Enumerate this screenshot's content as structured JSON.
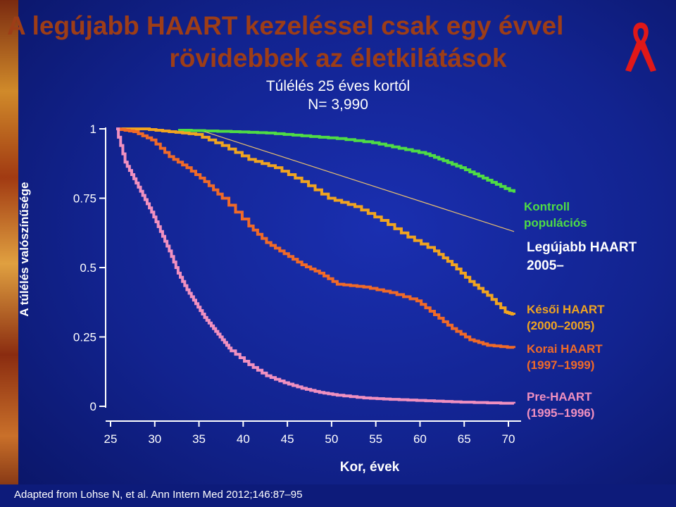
{
  "title_line1": "A legújabb HAART kezeléssel csak egy évvel",
  "title_line2": "rövidebbek az életkilátások",
  "subtitle_line1": "Túlélés 25 éves kortól",
  "subtitle_line2": "N= 3,990",
  "footer": "Adapted from Lohse N, et al.  Ann Intern Med 2012;146:87–95",
  "colors": {
    "title": "#9d3d17",
    "kontroll": "#4fdc45",
    "kesoi": "#f0a420",
    "korai": "#f06a28",
    "pre": "#f090c0",
    "background": "#12238f"
  },
  "icons": [
    "aids-ribbon-icon"
  ],
  "chart_data": {
    "type": "line",
    "xlabel": "Kor, évek",
    "ylabel": "A túlélés valószínűsége",
    "xlim": [
      25,
      70
    ],
    "ylim": [
      0,
      1
    ],
    "x_ticks": [
      "25",
      "30",
      "35",
      "40",
      "45",
      "50",
      "55",
      "60",
      "65",
      "70"
    ],
    "y_ticks": [
      "0",
      "0.25",
      "0.5",
      "0.75",
      "1"
    ],
    "legend_labels": [
      "Kontroll\npopulációs",
      "Legújabb HAART\n2005–",
      "Késői HAART\n(2000–2005)",
      "Korai HAART\n(1997–1999)",
      "Pre-HAART\n(1995–1996)"
    ],
    "series": [
      {
        "name": "Kontroll populációs",
        "key": "kontroll",
        "step": true,
        "x": [
          32,
          38,
          42,
          46,
          50,
          54,
          57,
          60,
          62,
          64,
          66,
          68,
          70
        ],
        "y": [
          0.995,
          0.99,
          0.985,
          0.975,
          0.965,
          0.95,
          0.93,
          0.91,
          0.885,
          0.86,
          0.83,
          0.8,
          0.77
        ]
      },
      {
        "name": "Legújabb HAART 2005–",
        "key": "uj",
        "step": false,
        "x": [
          35,
          70
        ],
        "y": [
          0.99,
          0.63
        ]
      },
      {
        "name": "Késői HAART (2000–2005)",
        "key": "kesoi",
        "step": true,
        "x": [
          25,
          28,
          31,
          34,
          37,
          40,
          43,
          46,
          49,
          52,
          55,
          58,
          61,
          63,
          65,
          67,
          69,
          70
        ],
        "y": [
          1.0,
          1.0,
          0.99,
          0.98,
          0.94,
          0.89,
          0.86,
          0.81,
          0.75,
          0.72,
          0.67,
          0.61,
          0.56,
          0.51,
          0.45,
          0.4,
          0.34,
          0.33
        ]
      },
      {
        "name": "Korai HAART (1997–1999)",
        "key": "korai",
        "step": true,
        "x": [
          25,
          27,
          29,
          31,
          33,
          35,
          37,
          40,
          42,
          44,
          46,
          48,
          50,
          53,
          56,
          59,
          61,
          63,
          65,
          67,
          70
        ],
        "y": [
          1.0,
          0.99,
          0.96,
          0.9,
          0.86,
          0.81,
          0.75,
          0.65,
          0.59,
          0.55,
          0.51,
          0.48,
          0.44,
          0.43,
          0.41,
          0.38,
          0.33,
          0.28,
          0.24,
          0.22,
          0.21
        ]
      },
      {
        "name": "Pre-HAART (1995–1996)",
        "key": "pre",
        "step": true,
        "x": [
          25,
          26,
          27,
          28,
          29,
          30,
          31,
          32,
          33,
          34,
          35,
          36,
          37,
          38,
          40,
          42,
          44,
          46,
          48,
          50,
          53,
          56,
          60,
          64,
          70
        ],
        "y": [
          1.0,
          0.88,
          0.82,
          0.76,
          0.7,
          0.63,
          0.56,
          0.48,
          0.42,
          0.37,
          0.32,
          0.28,
          0.24,
          0.2,
          0.15,
          0.11,
          0.085,
          0.065,
          0.05,
          0.04,
          0.03,
          0.025,
          0.02,
          0.015,
          0.01
        ]
      }
    ]
  }
}
